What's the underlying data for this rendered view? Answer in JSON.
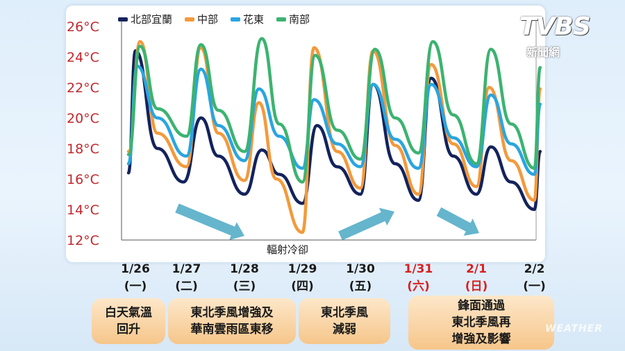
{
  "brand": {
    "logo": "TVBS",
    "sub": "新聞網",
    "watermark": "WEATHER"
  },
  "colors": {
    "北部宜蘭": "#14235c",
    "中部": "#f39a3c",
    "花東": "#2aa5e0",
    "南部": "#3cb371",
    "weekend": "#d62020",
    "axis": "#c0282d"
  },
  "chart_data": {
    "type": "line",
    "x": [
      "1/26",
      "1/27",
      "1/28",
      "1/29",
      "1/30",
      "1/31",
      "2/1",
      "2/2"
    ],
    "x_sub": [
      "(一)",
      "(二)",
      "(三)",
      "(四)",
      "(五)",
      "(六)",
      "(日)",
      "(一)"
    ],
    "weekend_index": [
      5,
      6
    ],
    "yticks": [
      "12°C",
      "14°C",
      "16°C",
      "18°C",
      "20°C",
      "22°C",
      "24°C",
      "26°C"
    ],
    "ylim": [
      12,
      26
    ],
    "series": [
      {
        "name": "北部宜蘭",
        "color": "#14235c",
        "points": [
          [
            0,
            16.4
          ],
          [
            0.12,
            24.4
          ],
          [
            0.5,
            18.0
          ],
          [
            0.95,
            15.8
          ],
          [
            1.25,
            20.0
          ],
          [
            1.55,
            17.5
          ],
          [
            2.0,
            15.0
          ],
          [
            2.3,
            17.9
          ],
          [
            2.6,
            16.3
          ],
          [
            3.0,
            14.4
          ],
          [
            3.25,
            19.5
          ],
          [
            3.6,
            16.8
          ],
          [
            4.0,
            15.0
          ],
          [
            4.22,
            22.2
          ],
          [
            4.6,
            17.0
          ],
          [
            5.0,
            14.6
          ],
          [
            5.22,
            22.6
          ],
          [
            5.6,
            17.5
          ],
          [
            6.0,
            15.0
          ],
          [
            6.25,
            18.1
          ],
          [
            6.6,
            15.8
          ],
          [
            7.0,
            14.0
          ],
          [
            7.1,
            17.8
          ]
        ]
      },
      {
        "name": "中部",
        "color": "#f39a3c",
        "points": [
          [
            0,
            17.8
          ],
          [
            0.2,
            25.0
          ],
          [
            0.5,
            19.0
          ],
          [
            1.0,
            16.8
          ],
          [
            1.25,
            24.6
          ],
          [
            1.55,
            19.0
          ],
          [
            2.0,
            15.9
          ],
          [
            2.25,
            21.0
          ],
          [
            2.55,
            16.0
          ],
          [
            3.0,
            12.5
          ],
          [
            3.2,
            24.6
          ],
          [
            3.6,
            17.8
          ],
          [
            4.0,
            15.4
          ],
          [
            4.22,
            24.4
          ],
          [
            4.6,
            18.2
          ],
          [
            5.0,
            15.0
          ],
          [
            5.22,
            23.5
          ],
          [
            5.6,
            18.3
          ],
          [
            6.0,
            15.5
          ],
          [
            6.22,
            22.0
          ],
          [
            6.6,
            17.2
          ],
          [
            7.0,
            14.6
          ],
          [
            7.1,
            21.9
          ]
        ]
      },
      {
        "name": "花東",
        "color": "#2aa5e0",
        "points": [
          [
            0,
            17.0
          ],
          [
            0.15,
            23.4
          ],
          [
            0.5,
            20.0
          ],
          [
            1.0,
            17.5
          ],
          [
            1.25,
            23.2
          ],
          [
            1.55,
            19.5
          ],
          [
            2.0,
            17.2
          ],
          [
            2.25,
            21.9
          ],
          [
            2.6,
            18.8
          ],
          [
            3.0,
            16.7
          ],
          [
            3.2,
            21.2
          ],
          [
            3.6,
            18.3
          ],
          [
            4.0,
            16.8
          ],
          [
            4.22,
            22.2
          ],
          [
            4.6,
            18.6
          ],
          [
            5.0,
            16.7
          ],
          [
            5.22,
            22.2
          ],
          [
            5.6,
            18.7
          ],
          [
            6.0,
            16.8
          ],
          [
            6.25,
            21.5
          ],
          [
            6.6,
            18.3
          ],
          [
            7.0,
            16.3
          ],
          [
            7.1,
            20.9
          ]
        ]
      },
      {
        "name": "南部",
        "color": "#3cb371",
        "points": [
          [
            0,
            17.6
          ],
          [
            0.2,
            24.7
          ],
          [
            0.5,
            20.6
          ],
          [
            1.0,
            18.8
          ],
          [
            1.25,
            24.8
          ],
          [
            1.55,
            20.5
          ],
          [
            2.0,
            17.8
          ],
          [
            2.3,
            25.2
          ],
          [
            2.6,
            19.6
          ],
          [
            3.0,
            15.8
          ],
          [
            3.22,
            24.1
          ],
          [
            3.6,
            19.2
          ],
          [
            4.0,
            17.3
          ],
          [
            4.25,
            24.5
          ],
          [
            4.6,
            20.0
          ],
          [
            5.0,
            17.7
          ],
          [
            5.25,
            25.0
          ],
          [
            5.6,
            20.2
          ],
          [
            6.0,
            17.0
          ],
          [
            6.25,
            24.5
          ],
          [
            6.6,
            19.6
          ],
          [
            7.0,
            16.7
          ],
          [
            7.1,
            23.3
          ]
        ]
      }
    ],
    "annotation": "輻射冷卻",
    "legend": [
      "北部宜蘭",
      "中部",
      "花東",
      "南部"
    ]
  },
  "boxes": [
    {
      "lines": [
        "白天氣溫",
        "回升"
      ]
    },
    {
      "lines": [
        "東北季風增強及",
        "華南雲雨區東移"
      ]
    },
    {
      "lines": [
        "東北季風",
        "減弱"
      ]
    },
    {
      "lines": [
        "鋒面通過",
        "東北季風再",
        "增強及影響"
      ]
    }
  ]
}
